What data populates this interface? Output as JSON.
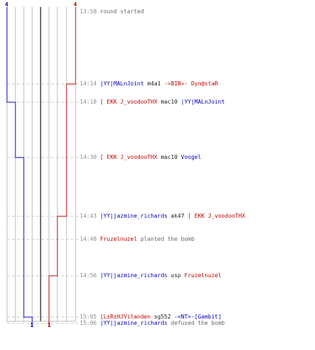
{
  "colors": {
    "ct_team": "#0000c0",
    "t_team": "#c00000",
    "grid": "#b8b8b8",
    "center_line": "#707070",
    "dashed_guide": "#c8c8c8",
    "time_text": "#8a8a8a",
    "event_text": "#666666",
    "weapon_text": "#202020"
  },
  "scores": {
    "ct_start": "4",
    "t_start": "4",
    "ct_end": "1",
    "t_end": "1"
  },
  "events": [
    {
      "time": "13:58",
      "parts": [
        {
          "text": "round started",
          "role": "txt"
        }
      ],
      "y": 0
    },
    {
      "time": "14:14",
      "parts": [
        {
          "text": "|YY|MALnJoint",
          "role": "ct"
        },
        {
          "text": " m4a1 ",
          "role": "n"
        },
        {
          "text": "-=BIB=- Dyn@staR",
          "role": "t"
        }
      ]
    },
    {
      "time": "14:18",
      "parts": [
        {
          "text": "[ EKK J_voodooTHX",
          "role": "t"
        },
        {
          "text": " mac10 ",
          "role": "n"
        },
        {
          "text": "|YY|MALnJoint",
          "role": "ct"
        }
      ]
    },
    {
      "time": "14:30",
      "parts": [
        {
          "text": "[ EKK J_voodooTHX",
          "role": "t"
        },
        {
          "text": " mac10 ",
          "role": "n"
        },
        {
          "text": "Voogel",
          "role": "ct"
        }
      ]
    },
    {
      "time": "14:43",
      "parts": [
        {
          "text": "|YY|jazmine_richards",
          "role": "ct"
        },
        {
          "text": " ak47 ",
          "role": "n"
        },
        {
          "text": "[ EKK J_voodooTHX",
          "role": "t"
        }
      ]
    },
    {
      "time": "14:48",
      "parts": [
        {
          "text": "Fruzelnuzel",
          "role": "t"
        },
        {
          "text": " planted the bomb",
          "role": "txt"
        }
      ]
    },
    {
      "time": "14:56",
      "parts": [
        {
          "text": "|YY|jazmine_richards",
          "role": "ct"
        },
        {
          "text": " usp ",
          "role": "n"
        },
        {
          "text": "Fruzelnuzel",
          "role": "t"
        }
      ]
    },
    {
      "time": "15:05",
      "parts": [
        {
          "text": "[L±R±HJVilanden",
          "role": "t"
        },
        {
          "text": " sg552 ",
          "role": "n"
        },
        {
          "text": "-<NT>-[Gambit]",
          "role": "ct"
        }
      ]
    },
    {
      "time": "15:06",
      "parts": [
        {
          "text": "|YY|jazmine_richards",
          "role": "ct"
        },
        {
          "text": " defused the bomb",
          "role": "txt"
        }
      ]
    }
  ]
}
